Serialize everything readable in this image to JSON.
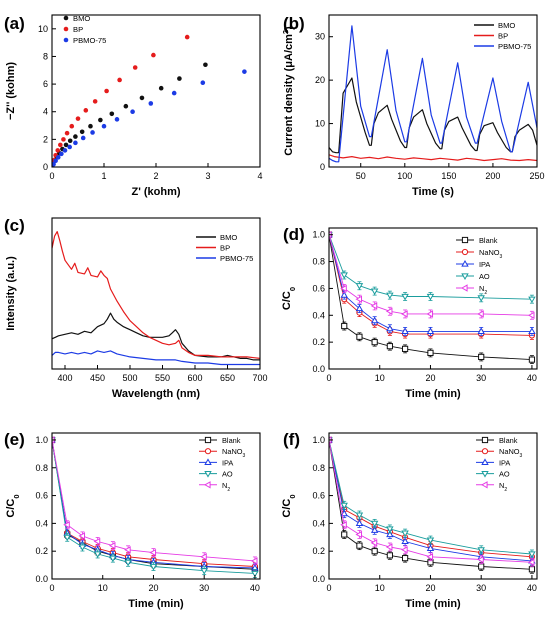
{
  "chart_data": [
    {
      "panel": "(a)",
      "type": "scatter",
      "xlabel": "Z' (kohm)",
      "ylabel": "−Z'' (kohm)",
      "xlim": [
        0,
        4
      ],
      "ylim": [
        0,
        11
      ],
      "xticks": [
        0,
        1,
        2,
        3,
        4
      ],
      "yticks": [
        0,
        2,
        4,
        6,
        8,
        10
      ],
      "legend_position": "top-left",
      "series": [
        {
          "name": "BMO",
          "color": "#111111",
          "x": [
            0.0,
            0.02,
            0.05,
            0.09,
            0.14,
            0.2,
            0.27,
            0.35,
            0.45,
            0.58,
            0.74,
            0.93,
            1.15,
            1.42,
            1.73,
            2.1,
            2.45,
            2.95
          ],
          "y": [
            0.0,
            0.25,
            0.5,
            0.75,
            1.0,
            1.3,
            1.6,
            1.9,
            2.2,
            2.55,
            2.95,
            3.4,
            3.85,
            4.4,
            5.0,
            5.7,
            6.4,
            7.4
          ]
        },
        {
          "name": "BP",
          "color": "#e51c1c",
          "x": [
            0.0,
            0.02,
            0.04,
            0.07,
            0.11,
            0.16,
            0.22,
            0.29,
            0.38,
            0.5,
            0.65,
            0.83,
            1.05,
            1.3,
            1.6,
            1.95,
            2.6
          ],
          "y": [
            0.0,
            0.25,
            0.5,
            0.85,
            1.2,
            1.6,
            2.0,
            2.45,
            2.95,
            3.5,
            4.1,
            4.75,
            5.5,
            6.3,
            7.2,
            8.1,
            9.4
          ]
        },
        {
          "name": "PBMO-75",
          "color": "#1c3be5",
          "x": [
            0.0,
            0.03,
            0.07,
            0.12,
            0.18,
            0.25,
            0.34,
            0.45,
            0.6,
            0.78,
            1.0,
            1.25,
            1.55,
            1.9,
            2.35,
            2.9,
            3.7
          ],
          "y": [
            0.0,
            0.2,
            0.45,
            0.7,
            0.95,
            1.2,
            1.45,
            1.75,
            2.1,
            2.5,
            2.95,
            3.45,
            4.0,
            4.6,
            5.35,
            6.1,
            6.9
          ]
        }
      ]
    },
    {
      "panel": "(b)",
      "type": "line",
      "xlabel": "Time (s)",
      "ylabel": "Current density (μA/cm²)",
      "xlim": [
        14,
        250
      ],
      "ylim": [
        0,
        35
      ],
      "xticks": [
        50,
        100,
        150,
        200,
        250
      ],
      "yticks": [
        0,
        10,
        20,
        30
      ],
      "legend_position": "top-right",
      "series": [
        {
          "name": "BMO",
          "color": "#111111",
          "x": [
            14,
            18,
            22,
            25,
            30,
            40,
            45,
            55,
            60,
            62,
            65,
            70,
            80,
            85,
            95,
            100,
            102,
            105,
            110,
            120,
            125,
            135,
            140,
            142,
            145,
            150,
            160,
            165,
            175,
            180,
            182,
            185,
            190,
            200,
            205,
            215,
            220,
            222,
            225,
            230,
            240,
            245,
            250
          ],
          "y": [
            4.5,
            3.5,
            3.3,
            3.3,
            17,
            20.5,
            15,
            8,
            5.0,
            5.0,
            10,
            12.5,
            14.2,
            11,
            6,
            4.5,
            4.5,
            9,
            11.5,
            13.2,
            10,
            5.5,
            4.2,
            4.2,
            8.5,
            10.5,
            11.5,
            9,
            5,
            3.8,
            3.8,
            7.5,
            9.5,
            10.2,
            8,
            4.5,
            3.5,
            3.5,
            7,
            8.5,
            9.8,
            8.5,
            5
          ]
        },
        {
          "name": "BP",
          "color": "#e51c1c",
          "x": [
            14,
            20,
            30,
            40,
            50,
            60,
            70,
            80,
            90,
            100,
            110,
            120,
            130,
            140,
            150,
            160,
            170,
            180,
            190,
            200,
            210,
            220,
            230,
            240,
            250
          ],
          "y": [
            2.8,
            2.4,
            2.1,
            2.4,
            2.0,
            2.2,
            1.9,
            2.3,
            2.0,
            1.8,
            2.1,
            1.9,
            1.7,
            2.0,
            1.8,
            1.6,
            2.0,
            1.8,
            1.5,
            1.7,
            1.9,
            1.6,
            1.5,
            1.7,
            1.5
          ]
        },
        {
          "name": "PBMO-75",
          "color": "#1c3be5",
          "x": [
            14,
            18,
            22,
            25,
            40,
            50,
            60,
            62,
            80,
            90,
            100,
            102,
            120,
            130,
            140,
            142,
            160,
            170,
            180,
            182,
            200,
            210,
            220,
            222,
            240,
            250
          ],
          "y": [
            2,
            1.5,
            1.2,
            1.2,
            32.5,
            14,
            7,
            7,
            27,
            13,
            5.8,
            5.8,
            25,
            12,
            5.5,
            5.5,
            24,
            11.5,
            5.5,
            5.5,
            20.5,
            10.5,
            3.5,
            3.5,
            19.5,
            9
          ]
        }
      ]
    },
    {
      "panel": "(c)",
      "type": "line",
      "xlabel": "Wavelength (nm)",
      "ylabel": "Intensity (a.u.)",
      "xlim": [
        380,
        700
      ],
      "xticks": [
        400,
        450,
        500,
        550,
        600,
        650,
        700
      ],
      "yticks": [],
      "legend_position": "top-right",
      "series": [
        {
          "name": "BMO",
          "color": "#111111",
          "x": [
            380,
            385,
            390,
            400,
            410,
            420,
            430,
            440,
            450,
            460,
            465,
            470,
            475,
            480,
            490,
            500,
            510,
            520,
            530,
            540,
            550,
            560,
            565,
            570,
            575,
            580,
            590,
            600,
            620,
            640,
            650,
            660,
            670,
            680,
            690,
            700
          ],
          "y": [
            0.2,
            0.21,
            0.22,
            0.23,
            0.24,
            0.23,
            0.25,
            0.24,
            0.28,
            0.3,
            0.33,
            0.37,
            0.33,
            0.31,
            0.28,
            0.26,
            0.24,
            0.22,
            0.21,
            0.21,
            0.21,
            0.22,
            0.24,
            0.26,
            0.23,
            0.17,
            0.12,
            0.09,
            0.08,
            0.08,
            0.09,
            0.08,
            0.07,
            0.07,
            0.06,
            0.06
          ]
        },
        {
          "name": "BP",
          "color": "#e51c1c",
          "x": [
            380,
            384,
            388,
            392,
            396,
            400,
            410,
            415,
            420,
            430,
            435,
            440,
            450,
            455,
            460,
            465,
            470,
            480,
            490,
            500,
            510,
            520,
            530,
            540,
            550,
            560,
            570,
            575,
            580,
            590,
            600,
            620,
            640,
            660,
            680,
            700
          ],
          "y": [
            0.8,
            0.88,
            0.91,
            0.85,
            0.78,
            0.72,
            0.66,
            0.7,
            0.64,
            0.63,
            0.67,
            0.62,
            0.61,
            0.65,
            0.62,
            0.6,
            0.53,
            0.45,
            0.38,
            0.32,
            0.28,
            0.24,
            0.21,
            0.19,
            0.17,
            0.16,
            0.17,
            0.19,
            0.14,
            0.11,
            0.09,
            0.09,
            0.08,
            0.08,
            0.08,
            0.07
          ]
        },
        {
          "name": "PBMO-75",
          "color": "#1c3be5",
          "x": [
            380,
            385,
            390,
            400,
            410,
            420,
            430,
            440,
            450,
            460,
            470,
            480,
            490,
            500,
            520,
            540,
            560,
            570,
            580,
            600,
            620,
            640,
            660,
            680,
            700
          ],
          "y": [
            0.09,
            0.11,
            0.11,
            0.1,
            0.11,
            0.1,
            0.11,
            0.1,
            0.12,
            0.11,
            0.12,
            0.1,
            0.09,
            0.08,
            0.07,
            0.06,
            0.06,
            0.06,
            0.05,
            0.04,
            0.04,
            0.03,
            0.03,
            0.03,
            0.03
          ]
        }
      ]
    },
    {
      "panel": "(d)",
      "type": "line",
      "xlabel": "Time (min)",
      "ylabel": "C/C₀",
      "xlim": [
        0,
        41
      ],
      "ylim": [
        0,
        1.05
      ],
      "xticks": [
        0,
        10,
        20,
        30,
        40
      ],
      "yticks": [
        0.0,
        0.2,
        0.4,
        0.6,
        0.8,
        1.0
      ],
      "legend_position": "top-right",
      "x": [
        0,
        3,
        6,
        9,
        12,
        15,
        20,
        30,
        40
      ],
      "series": [
        {
          "name": "Blank",
          "marker": "square",
          "color": "#111111",
          "values": [
            1.0,
            0.32,
            0.24,
            0.2,
            0.17,
            0.15,
            0.12,
            0.09,
            0.07
          ]
        },
        {
          "name": "NaNO₃",
          "marker": "circle",
          "color": "#e51c1c",
          "values": [
            1.0,
            0.52,
            0.42,
            0.34,
            0.28,
            0.26,
            0.26,
            0.26,
            0.25
          ]
        },
        {
          "name": "IPA",
          "marker": "triangle-up",
          "color": "#1c3be5",
          "values": [
            1.0,
            0.55,
            0.45,
            0.36,
            0.3,
            0.28,
            0.28,
            0.28,
            0.28
          ]
        },
        {
          "name": "AO",
          "marker": "triangle-down",
          "color": "#1a9d9d",
          "values": [
            1.0,
            0.7,
            0.62,
            0.58,
            0.55,
            0.54,
            0.54,
            0.53,
            0.52
          ]
        },
        {
          "name": "N₂",
          "marker": "triangle-left",
          "color": "#e53be5",
          "values": [
            1.0,
            0.6,
            0.52,
            0.47,
            0.43,
            0.41,
            0.41,
            0.41,
            0.4
          ]
        }
      ]
    },
    {
      "panel": "(e)",
      "type": "line",
      "xlabel": "Time (min)",
      "ylabel": "C/C₀",
      "xlim": [
        0,
        41
      ],
      "ylim": [
        0,
        1.05
      ],
      "xticks": [
        0,
        10,
        20,
        30,
        40
      ],
      "yticks": [
        0.0,
        0.2,
        0.4,
        0.6,
        0.8,
        1.0
      ],
      "legend_position": "top-right",
      "x": [
        0,
        3,
        6,
        9,
        12,
        15,
        20,
        30,
        40
      ],
      "series": [
        {
          "name": "Blank",
          "marker": "square",
          "color": "#111111",
          "values": [
            1.0,
            0.32,
            0.26,
            0.2,
            0.17,
            0.14,
            0.11,
            0.09,
            0.07
          ]
        },
        {
          "name": "NaNO₃",
          "marker": "circle",
          "color": "#e51c1c",
          "values": [
            1.0,
            0.33,
            0.27,
            0.22,
            0.19,
            0.16,
            0.14,
            0.11,
            0.09
          ]
        },
        {
          "name": "IPA",
          "marker": "triangle-up",
          "color": "#1c3be5",
          "values": [
            1.0,
            0.33,
            0.25,
            0.21,
            0.17,
            0.14,
            0.12,
            0.09,
            0.08
          ]
        },
        {
          "name": "AO",
          "marker": "triangle-down",
          "color": "#1a9d9d",
          "values": [
            1.0,
            0.3,
            0.23,
            0.18,
            0.15,
            0.12,
            0.09,
            0.06,
            0.04
          ]
        },
        {
          "name": "N₂",
          "marker": "triangle-left",
          "color": "#e53be5",
          "values": [
            1.0,
            0.39,
            0.31,
            0.27,
            0.24,
            0.21,
            0.19,
            0.16,
            0.13
          ]
        }
      ]
    },
    {
      "panel": "(f)",
      "type": "line",
      "xlabel": "Time (min)",
      "ylabel": "C/C₀",
      "xlim": [
        0,
        41
      ],
      "ylim": [
        0,
        1.05
      ],
      "xticks": [
        0,
        10,
        20,
        30,
        40
      ],
      "yticks": [
        0.0,
        0.2,
        0.4,
        0.6,
        0.8,
        1.0
      ],
      "legend_position": "top-right",
      "x": [
        0,
        3,
        6,
        9,
        12,
        15,
        20,
        30,
        40
      ],
      "series": [
        {
          "name": "Blank",
          "marker": "square",
          "color": "#111111",
          "values": [
            1.0,
            0.32,
            0.24,
            0.2,
            0.17,
            0.15,
            0.12,
            0.09,
            0.07
          ]
        },
        {
          "name": "NaNO₃",
          "marker": "circle",
          "color": "#e51c1c",
          "values": [
            1.0,
            0.5,
            0.44,
            0.38,
            0.34,
            0.3,
            0.24,
            0.19,
            0.16
          ]
        },
        {
          "name": "IPA",
          "marker": "triangle-up",
          "color": "#1c3be5",
          "values": [
            1.0,
            0.47,
            0.4,
            0.35,
            0.32,
            0.27,
            0.22,
            0.16,
            0.13
          ]
        },
        {
          "name": "AO",
          "marker": "triangle-down",
          "color": "#1a9d9d",
          "values": [
            1.0,
            0.53,
            0.46,
            0.4,
            0.36,
            0.33,
            0.28,
            0.21,
            0.18
          ]
        },
        {
          "name": "N₂",
          "marker": "triangle-left",
          "color": "#e53be5",
          "values": [
            1.0,
            0.39,
            0.32,
            0.26,
            0.23,
            0.21,
            0.16,
            0.14,
            0.12
          ]
        }
      ]
    }
  ]
}
